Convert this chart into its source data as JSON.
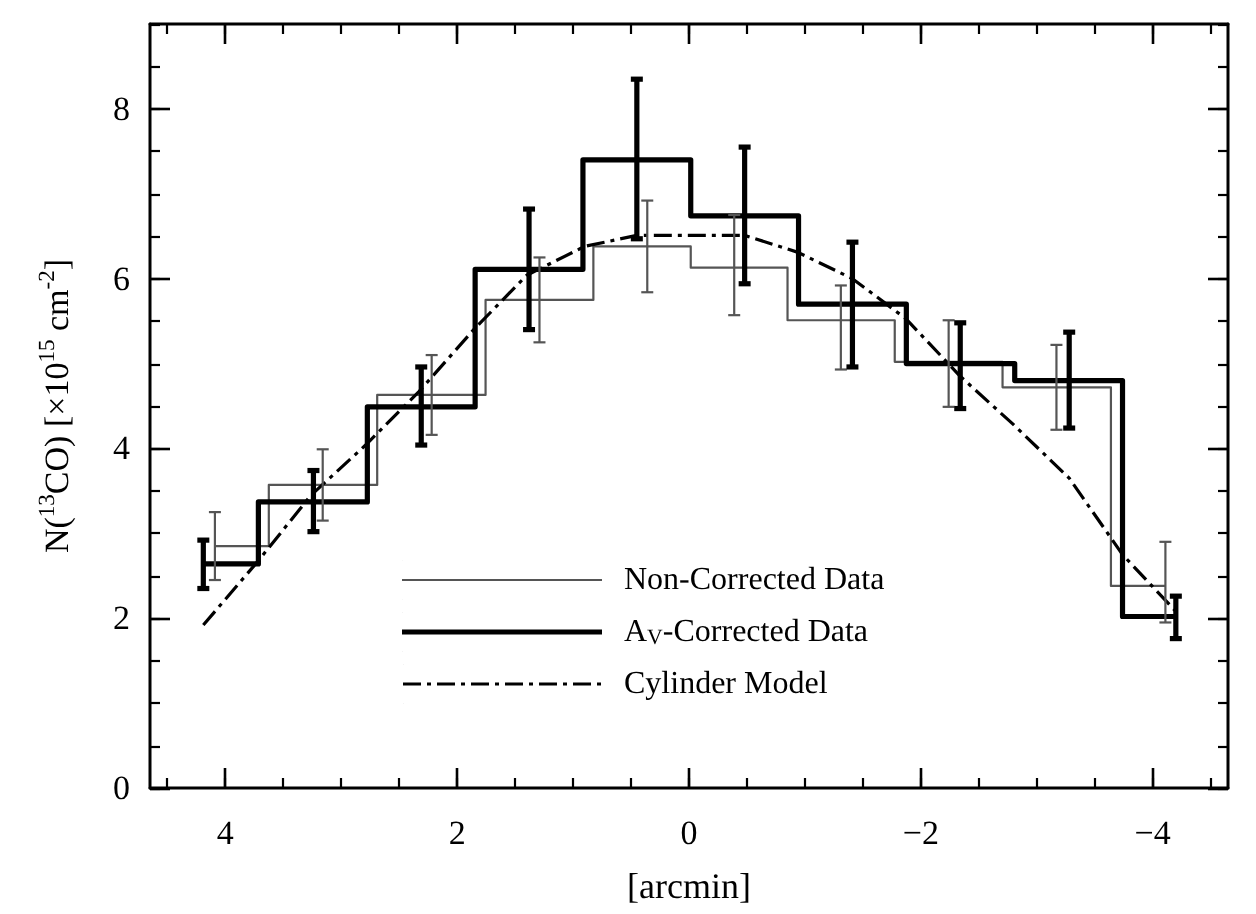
{
  "chart_data": {
    "type": "step",
    "xlabel": "[arcmin]",
    "ylabel": "N($^{13}$CO) [×10$^{15}$ cm$^{-2}$]",
    "xlim": [
      4.65,
      -4.65
    ],
    "xticks": [
      4,
      2,
      0,
      -2,
      -4
    ],
    "ylim": [
      0,
      9
    ],
    "yticks": [
      0,
      2,
      4,
      6,
      8
    ],
    "grid": false,
    "legend": "bottom",
    "marker": "none",
    "series": [
      {
        "name": "Non-Corrected Data",
        "color": "#555555",
        "line_style": "solid",
        "x": [
          4.09,
          3.16,
          2.22,
          1.29,
          0.36,
          -0.39,
          -1.31,
          -2.24,
          -3.17,
          -4.11
        ],
        "values": [
          2.85,
          3.57,
          4.63,
          5.75,
          6.38,
          6.13,
          5.51,
          5.02,
          4.72,
          2.38
        ],
        "errors": [
          [
            2.45,
            3.25
          ],
          [
            3.15,
            3.99
          ],
          [
            4.16,
            5.1
          ],
          [
            5.25,
            6.25
          ],
          [
            5.84,
            6.92
          ],
          [
            5.57,
            6.75
          ],
          [
            4.93,
            5.92
          ],
          [
            4.49,
            5.51
          ],
          [
            4.22,
            5.22
          ],
          [
            1.95,
            2.9
          ]
        ]
      },
      {
        "name": "A$_{V}$-Corrected Data",
        "color": "#000000",
        "line_style": "solid",
        "x": [
          4.19,
          3.24,
          2.31,
          1.38,
          0.45,
          -0.48,
          -1.41,
          -2.34,
          -3.28,
          -4.2
        ],
        "values": [
          2.64,
          3.37,
          4.49,
          6.11,
          7.4,
          6.74,
          5.7,
          5.0,
          4.8,
          2.02
        ],
        "errors": [
          [
            2.35,
            2.92
          ],
          [
            3.02,
            3.74
          ],
          [
            4.04,
            4.96
          ],
          [
            5.4,
            6.82
          ],
          [
            6.47,
            8.35
          ],
          [
            5.94,
            7.55
          ],
          [
            4.96,
            6.43
          ],
          [
            4.47,
            5.48
          ],
          [
            4.24,
            5.37
          ],
          [
            1.76,
            2.26
          ]
        ]
      },
      {
        "name": "Cylinder Model",
        "type": "line",
        "color": "#000000",
        "line_style": "dashdot",
        "x": [
          4.19,
          3.72,
          3.26,
          2.79,
          2.33,
          1.85,
          1.4,
          0.9,
          0.45,
          0,
          -0.48,
          -0.94,
          -1.41,
          -1.87,
          -2.34,
          -2.8,
          -3.28,
          -3.74,
          -4.2
        ],
        "values": [
          1.92,
          2.67,
          3.45,
          4.04,
          4.67,
          5.41,
          6.04,
          6.38,
          6.51,
          6.51,
          6.51,
          6.31,
          6.0,
          5.53,
          4.85,
          4.28,
          3.65,
          2.75,
          2.08
        ]
      }
    ]
  }
}
